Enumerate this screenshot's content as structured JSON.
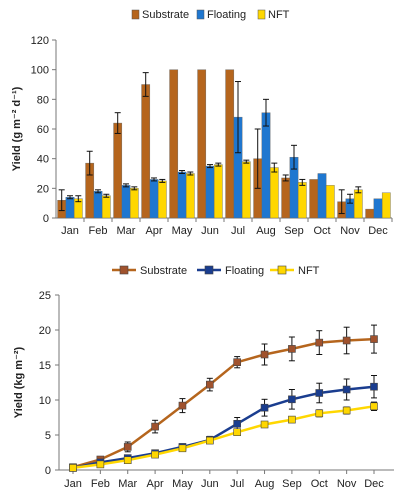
{
  "chart_data": [
    {
      "type": "bar",
      "categories": [
        "Jan",
        "Feb",
        "Mar",
        "Apr",
        "May",
        "Jun",
        "Jul",
        "Aug",
        "Sep",
        "Oct",
        "Nov",
        "Dec"
      ],
      "ylabel": "Yield (g m⁻² d⁻¹)",
      "ylim": [
        0,
        120
      ],
      "yticks": [
        0,
        20,
        40,
        60,
        80,
        100,
        120
      ],
      "grid": false,
      "legend": "top",
      "series": [
        {
          "name": "Substrate",
          "color": "#b5651d",
          "values": [
            12,
            37,
            64,
            90,
            100,
            100,
            100,
            40,
            27,
            26,
            11,
            6
          ],
          "errors": [
            7,
            8,
            7,
            8,
            0,
            0,
            0,
            20,
            2,
            0,
            8,
            0
          ]
        },
        {
          "name": "Floating",
          "color": "#1f77d0",
          "values": [
            14,
            18,
            22,
            26,
            31,
            35,
            68,
            71,
            41,
            30,
            13,
            13
          ],
          "errors": [
            1,
            1,
            1,
            1,
            1,
            1,
            24,
            9,
            8,
            0,
            3,
            0
          ]
        },
        {
          "name": "NFT",
          "color": "#ffd700",
          "values": [
            13,
            15,
            20,
            25,
            30,
            36,
            38,
            34,
            24,
            22,
            19,
            17
          ],
          "errors": [
            2,
            1,
            1,
            1,
            1,
            1,
            1,
            3,
            2,
            0,
            2,
            0
          ]
        }
      ]
    },
    {
      "type": "line",
      "categories": [
        "Jan",
        "Feb",
        "Mar",
        "Apr",
        "May",
        "Jun",
        "Jul",
        "Aug",
        "Sep",
        "Oct",
        "Nov",
        "Dec"
      ],
      "ylabel": "Yield (kg m⁻²)",
      "ylim": [
        0,
        25
      ],
      "yticks": [
        0,
        5,
        10,
        15,
        20,
        25
      ],
      "grid": false,
      "legend": "top",
      "series": [
        {
          "name": "Substrate",
          "color": "#b5651d",
          "marker": "#a0522d",
          "values": [
            0.4,
            1.5,
            3.3,
            6.2,
            9.2,
            12.2,
            15.4,
            16.5,
            17.3,
            18.2,
            18.5,
            18.7
          ],
          "errors": [
            0.2,
            0.4,
            0.7,
            0.9,
            1.0,
            0.9,
            0.8,
            1.5,
            1.7,
            1.7,
            1.9,
            2.0
          ]
        },
        {
          "name": "Floating",
          "color": "#1a3d8f",
          "marker": "#1a3d8f",
          "values": [
            0.3,
            1.1,
            1.7,
            2.4,
            3.3,
            4.3,
            6.6,
            8.9,
            10.1,
            11.0,
            11.5,
            11.9
          ],
          "errors": [
            0.1,
            0.2,
            0.3,
            0.4,
            0.4,
            0.5,
            0.9,
            1.2,
            1.4,
            1.4,
            1.5,
            1.6
          ]
        },
        {
          "name": "NFT",
          "color": "#ffd700",
          "marker": "#ffd700",
          "values": [
            0.3,
            0.8,
            1.4,
            2.2,
            3.1,
            4.2,
            5.4,
            6.5,
            7.2,
            8.1,
            8.5,
            9.1
          ],
          "errors": [
            0.1,
            0.2,
            0.2,
            0.3,
            0.3,
            0.3,
            0.3,
            0.4,
            0.4,
            0.5,
            0.5,
            0.6
          ]
        }
      ]
    }
  ]
}
